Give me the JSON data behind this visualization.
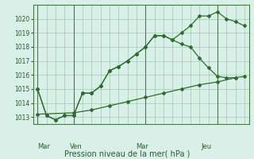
{
  "title": "Pression niveau de la mer( hPa )",
  "bg_color": "#d8f0e8",
  "grid_color": "#a0c8b0",
  "line_color": "#2d6e2d",
  "ylim": [
    1012.5,
    1021.0
  ],
  "yticks": [
    1013,
    1014,
    1015,
    1016,
    1017,
    1018,
    1019,
    1020
  ],
  "day_labels": [
    "Mar",
    "Ven",
    "Mar",
    "Jeu"
  ],
  "day_positions": [
    0,
    4,
    12,
    20
  ],
  "line1_x": [
    0,
    1,
    2,
    3,
    4,
    5,
    6,
    7,
    8,
    9,
    10,
    11,
    12,
    13,
    14,
    15,
    16,
    17,
    18,
    19,
    20,
    21,
    22,
    23
  ],
  "line1_y": [
    1015.0,
    1013.1,
    1012.8,
    1013.1,
    1013.1,
    1014.7,
    1014.7,
    1015.2,
    1016.3,
    1016.6,
    1017.0,
    1017.5,
    1018.0,
    1018.8,
    1018.8,
    1018.5,
    1019.0,
    1019.5,
    1020.2,
    1020.2,
    1020.5,
    1020.0,
    1019.8,
    1019.5
  ],
  "line2_x": [
    0,
    4,
    6,
    8,
    10,
    12,
    14,
    16,
    18,
    20,
    22,
    23
  ],
  "line2_y": [
    1013.2,
    1013.3,
    1013.5,
    1013.8,
    1014.1,
    1014.4,
    1014.7,
    1015.0,
    1015.3,
    1015.5,
    1015.8,
    1015.9
  ],
  "line3_x": [
    0,
    1,
    2,
    3,
    4,
    5,
    6,
    7,
    8,
    9,
    10,
    11,
    12,
    13,
    14,
    15,
    16,
    17,
    18,
    19,
    20,
    21,
    22
  ],
  "line3_y": [
    1015.0,
    1013.1,
    1012.8,
    1013.1,
    1013.1,
    1014.7,
    1014.7,
    1015.2,
    1016.3,
    1016.6,
    1017.0,
    1017.5,
    1018.0,
    1018.8,
    1018.8,
    1018.5,
    1018.2,
    1018.0,
    1017.2,
    1016.5,
    1015.9,
    1015.8,
    1015.8
  ]
}
